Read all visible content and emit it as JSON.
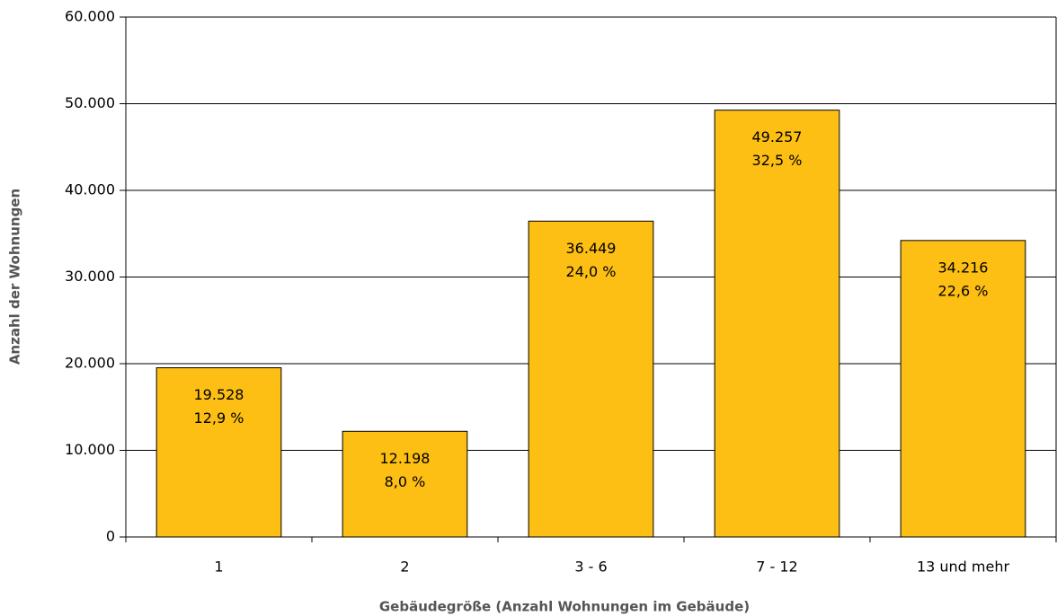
{
  "chart_data": {
    "type": "bar",
    "x_label": "Gebäudegröße (Anzahl Wohnungen im Gebäude)",
    "y_label": "Anzahl der Wohnungen",
    "categories": [
      "1",
      "2",
      "3 - 6",
      "7 - 12",
      "13 und mehr"
    ],
    "values": [
      19528,
      12198,
      36449,
      49257,
      34216
    ],
    "value_labels": [
      "19.528",
      "12.198",
      "36.449",
      "49.257",
      "34.216"
    ],
    "share_labels": [
      "12,9 %",
      "8,0 %",
      "24,0 %",
      "32,5 %",
      "22,6 %"
    ],
    "color": "#fdbf13",
    "ylim": [
      0,
      60000
    ],
    "yticks": [
      0,
      {
        "value": 10000,
        "label": "10.000"
      },
      {
        "value": 20000,
        "label": "20.000"
      },
      {
        "value": 30000,
        "label": "30.000"
      },
      {
        "value": 40000,
        "label": "40.000"
      },
      {
        "value": 50000,
        "label": "50.000"
      },
      {
        "value": 60000,
        "label": "60.000"
      }
    ],
    "grid": true
  }
}
